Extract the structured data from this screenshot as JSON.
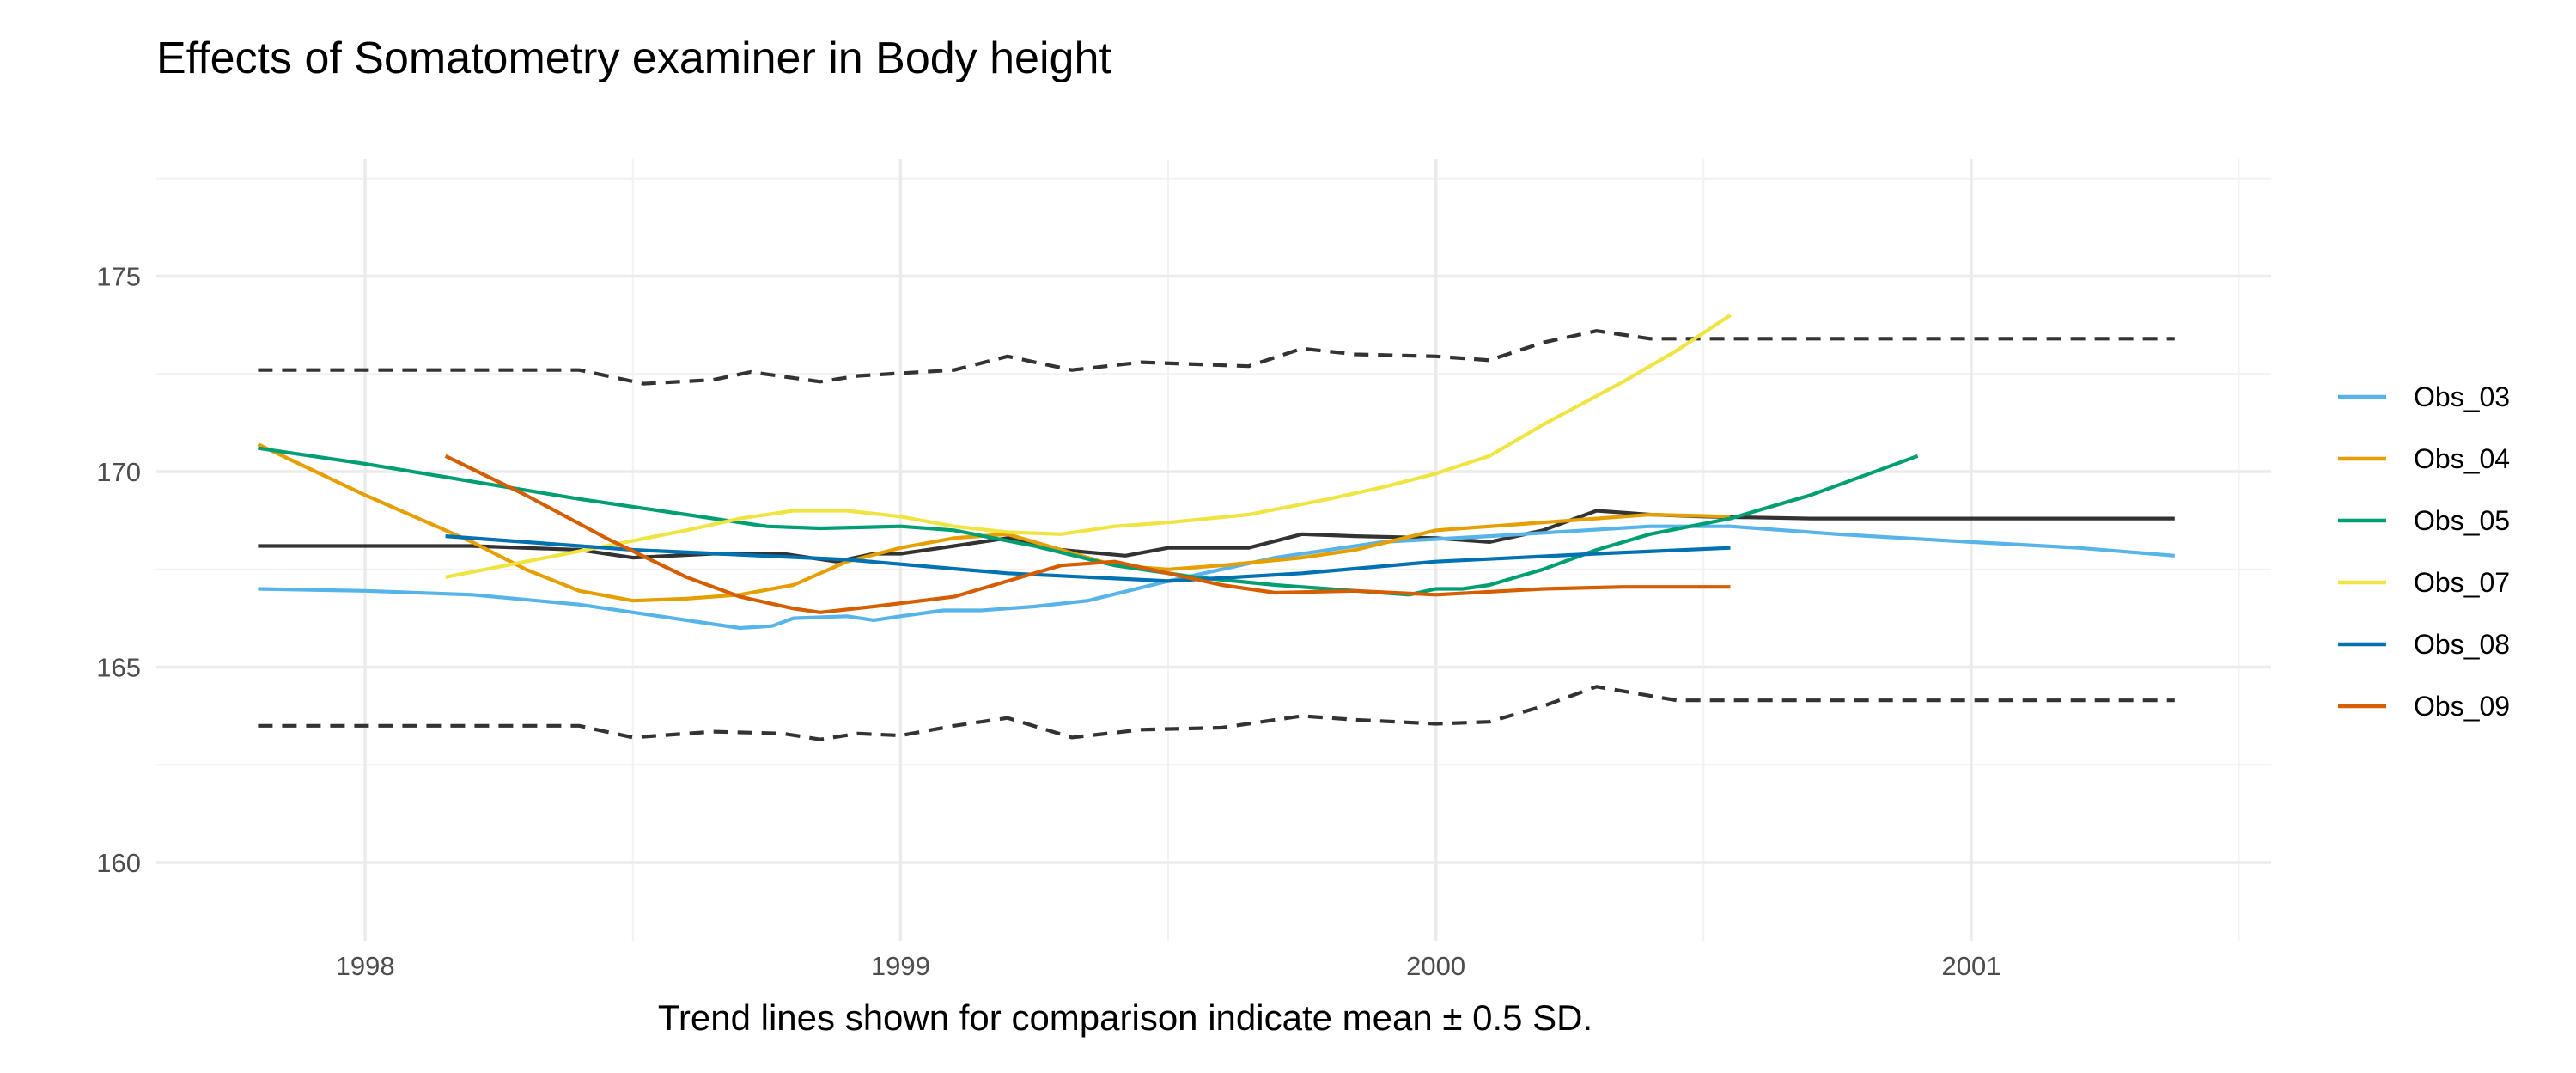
{
  "chart_data": {
    "type": "line",
    "title": "Effects of Somatometry examiner in Body height",
    "caption": "Trend lines shown for comparison indicate mean ± 0.5 SD.",
    "xlabel": "",
    "ylabel": "",
    "xlim": [
      1997.61,
      2001.56
    ],
    "ylim": [
      158.0,
      178.0
    ],
    "x_ticks": [
      1998,
      1999,
      2000,
      2001
    ],
    "y_ticks": [
      160,
      165,
      170,
      175
    ],
    "grid": true,
    "legend_position": "right",
    "series": [
      {
        "name": "Obs_03",
        "color": "#56B4E9",
        "style": "solid",
        "points": [
          [
            1997.8,
            167.0
          ],
          [
            1998.0,
            166.95
          ],
          [
            1998.2,
            166.85
          ],
          [
            1998.4,
            166.6
          ],
          [
            1998.55,
            166.3
          ],
          [
            1998.65,
            166.1
          ],
          [
            1998.7,
            166.0
          ],
          [
            1998.76,
            166.05
          ],
          [
            1998.8,
            166.25
          ],
          [
            1998.9,
            166.3
          ],
          [
            1998.95,
            166.2
          ],
          [
            1999.0,
            166.3
          ],
          [
            1999.08,
            166.45
          ],
          [
            1999.15,
            166.45
          ],
          [
            1999.25,
            166.55
          ],
          [
            1999.35,
            166.7
          ],
          [
            1999.5,
            167.2
          ],
          [
            1999.7,
            167.8
          ],
          [
            1999.9,
            168.2
          ],
          [
            2000.1,
            168.35
          ],
          [
            2000.4,
            168.6
          ],
          [
            2000.55,
            168.6
          ],
          [
            2000.75,
            168.4
          ],
          [
            2001.0,
            168.2
          ],
          [
            2001.2,
            168.05
          ],
          [
            2001.38,
            167.85
          ]
        ]
      },
      {
        "name": "Obs_04",
        "color": "#E69F00",
        "style": "solid",
        "points": [
          [
            1997.8,
            170.7
          ],
          [
            1998.0,
            169.4
          ],
          [
            1998.2,
            168.2
          ],
          [
            1998.3,
            167.5
          ],
          [
            1998.4,
            166.95
          ],
          [
            1998.5,
            166.7
          ],
          [
            1998.6,
            166.75
          ],
          [
            1998.7,
            166.85
          ],
          [
            1998.8,
            167.1
          ],
          [
            1998.9,
            167.7
          ],
          [
            1999.0,
            168.05
          ],
          [
            1999.1,
            168.3
          ],
          [
            1999.2,
            168.4
          ],
          [
            1999.3,
            168.0
          ],
          [
            1999.4,
            167.6
          ],
          [
            1999.5,
            167.5
          ],
          [
            1999.6,
            167.6
          ],
          [
            1999.75,
            167.8
          ],
          [
            1999.85,
            168.0
          ],
          [
            2000.0,
            168.5
          ],
          [
            2000.2,
            168.7
          ],
          [
            2000.4,
            168.9
          ],
          [
            2000.55,
            168.85
          ]
        ]
      },
      {
        "name": "Obs_05",
        "color": "#009E73",
        "style": "solid",
        "points": [
          [
            1997.8,
            170.6
          ],
          [
            1998.0,
            170.2
          ],
          [
            1998.2,
            169.75
          ],
          [
            1998.4,
            169.3
          ],
          [
            1998.6,
            168.9
          ],
          [
            1998.75,
            168.6
          ],
          [
            1998.85,
            168.55
          ],
          [
            1999.0,
            168.6
          ],
          [
            1999.1,
            168.5
          ],
          [
            1999.25,
            168.1
          ],
          [
            1999.4,
            167.6
          ],
          [
            1999.55,
            167.3
          ],
          [
            1999.7,
            167.1
          ],
          [
            1999.85,
            166.95
          ],
          [
            1999.95,
            166.85
          ],
          [
            2000.0,
            167.0
          ],
          [
            2000.05,
            167.0
          ],
          [
            2000.1,
            167.1
          ],
          [
            2000.2,
            167.5
          ],
          [
            2000.3,
            168.0
          ],
          [
            2000.4,
            168.4
          ],
          [
            2000.55,
            168.8
          ],
          [
            2000.7,
            169.4
          ],
          [
            2000.9,
            170.4
          ]
        ]
      },
      {
        "name": "Obs_07",
        "color": "#F0E442",
        "style": "solid",
        "points": [
          [
            1998.15,
            167.3
          ],
          [
            1998.3,
            167.7
          ],
          [
            1998.45,
            168.1
          ],
          [
            1998.6,
            168.5
          ],
          [
            1998.7,
            168.8
          ],
          [
            1998.8,
            169.0
          ],
          [
            1998.9,
            169.0
          ],
          [
            1999.0,
            168.85
          ],
          [
            1999.1,
            168.6
          ],
          [
            1999.2,
            168.45
          ],
          [
            1999.3,
            168.4
          ],
          [
            1999.4,
            168.6
          ],
          [
            1999.5,
            168.7
          ],
          [
            1999.65,
            168.9
          ],
          [
            1999.8,
            169.3
          ],
          [
            1999.9,
            169.6
          ],
          [
            2000.0,
            169.95
          ],
          [
            2000.1,
            170.4
          ],
          [
            2000.2,
            171.2
          ],
          [
            2000.35,
            172.3
          ],
          [
            2000.45,
            173.1
          ],
          [
            2000.55,
            174.0
          ]
        ]
      },
      {
        "name": "Obs_08",
        "color": "#0072B2",
        "style": "solid",
        "points": [
          [
            1998.15,
            168.35
          ],
          [
            1998.5,
            168.0
          ],
          [
            1998.9,
            167.75
          ],
          [
            1999.2,
            167.4
          ],
          [
            1999.5,
            167.2
          ],
          [
            1999.75,
            167.4
          ],
          [
            2000.0,
            167.7
          ],
          [
            2000.3,
            167.9
          ],
          [
            2000.55,
            168.05
          ]
        ]
      },
      {
        "name": "Obs_09",
        "color": "#D55E00",
        "style": "solid",
        "points": [
          [
            1998.15,
            170.4
          ],
          [
            1998.3,
            169.4
          ],
          [
            1998.45,
            168.3
          ],
          [
            1998.6,
            167.3
          ],
          [
            1998.7,
            166.8
          ],
          [
            1998.8,
            166.5
          ],
          [
            1998.85,
            166.4
          ],
          [
            1998.95,
            166.55
          ],
          [
            1999.1,
            166.8
          ],
          [
            1999.2,
            167.2
          ],
          [
            1999.3,
            167.6
          ],
          [
            1999.4,
            167.7
          ],
          [
            1999.5,
            167.4
          ],
          [
            1999.6,
            167.1
          ],
          [
            1999.7,
            166.9
          ],
          [
            1999.85,
            166.95
          ],
          [
            2000.0,
            166.85
          ],
          [
            2000.2,
            167.0
          ],
          [
            2000.35,
            167.05
          ],
          [
            2000.55,
            167.05
          ]
        ]
      },
      {
        "name": "",
        "color": "#333333",
        "style": "solid",
        "role": "mean",
        "points": [
          [
            1997.8,
            168.1
          ],
          [
            1998.2,
            168.1
          ],
          [
            1998.4,
            168.0
          ],
          [
            1998.5,
            167.8
          ],
          [
            1998.65,
            167.9
          ],
          [
            1998.78,
            167.9
          ],
          [
            1998.88,
            167.7
          ],
          [
            1998.95,
            167.9
          ],
          [
            1999.0,
            167.9
          ],
          [
            1999.1,
            168.1
          ],
          [
            1999.2,
            168.3
          ],
          [
            1999.3,
            168.0
          ],
          [
            1999.42,
            167.85
          ],
          [
            1999.5,
            168.05
          ],
          [
            1999.65,
            168.05
          ],
          [
            1999.75,
            168.4
          ],
          [
            1999.85,
            168.35
          ],
          [
            2000.0,
            168.3
          ],
          [
            2000.1,
            168.2
          ],
          [
            2000.2,
            168.5
          ],
          [
            2000.3,
            169.0
          ],
          [
            2000.4,
            168.9
          ],
          [
            2000.5,
            168.85
          ],
          [
            2000.7,
            168.8
          ],
          [
            2001.38,
            168.8
          ]
        ]
      },
      {
        "name": "",
        "color": "#333333",
        "style": "dashed",
        "role": "upper",
        "points": [
          [
            1997.8,
            172.6
          ],
          [
            1998.4,
            172.6
          ],
          [
            1998.52,
            172.25
          ],
          [
            1998.65,
            172.35
          ],
          [
            1998.72,
            172.55
          ],
          [
            1998.85,
            172.3
          ],
          [
            1998.92,
            172.45
          ],
          [
            1999.1,
            172.6
          ],
          [
            1999.2,
            172.95
          ],
          [
            1999.32,
            172.6
          ],
          [
            1999.45,
            172.8
          ],
          [
            1999.65,
            172.7
          ],
          [
            1999.75,
            173.15
          ],
          [
            1999.85,
            173.0
          ],
          [
            2000.0,
            172.95
          ],
          [
            2000.1,
            172.85
          ],
          [
            2000.2,
            173.3
          ],
          [
            2000.3,
            173.6
          ],
          [
            2000.4,
            173.4
          ],
          [
            2001.38,
            173.4
          ]
        ]
      },
      {
        "name": "",
        "color": "#333333",
        "style": "dashed",
        "role": "lower",
        "points": [
          [
            1997.8,
            163.5
          ],
          [
            1998.4,
            163.5
          ],
          [
            1998.5,
            163.2
          ],
          [
            1998.65,
            163.35
          ],
          [
            1998.78,
            163.3
          ],
          [
            1998.85,
            163.15
          ],
          [
            1998.92,
            163.3
          ],
          [
            1999.0,
            163.25
          ],
          [
            1999.1,
            163.5
          ],
          [
            1999.2,
            163.7
          ],
          [
            1999.32,
            163.2
          ],
          [
            1999.45,
            163.4
          ],
          [
            1999.6,
            163.45
          ],
          [
            1999.75,
            163.75
          ],
          [
            1999.85,
            163.65
          ],
          [
            2000.0,
            163.55
          ],
          [
            2000.1,
            163.6
          ],
          [
            2000.2,
            164.0
          ],
          [
            2000.3,
            164.5
          ],
          [
            2000.45,
            164.15
          ],
          [
            2001.38,
            164.15
          ]
        ]
      }
    ]
  }
}
